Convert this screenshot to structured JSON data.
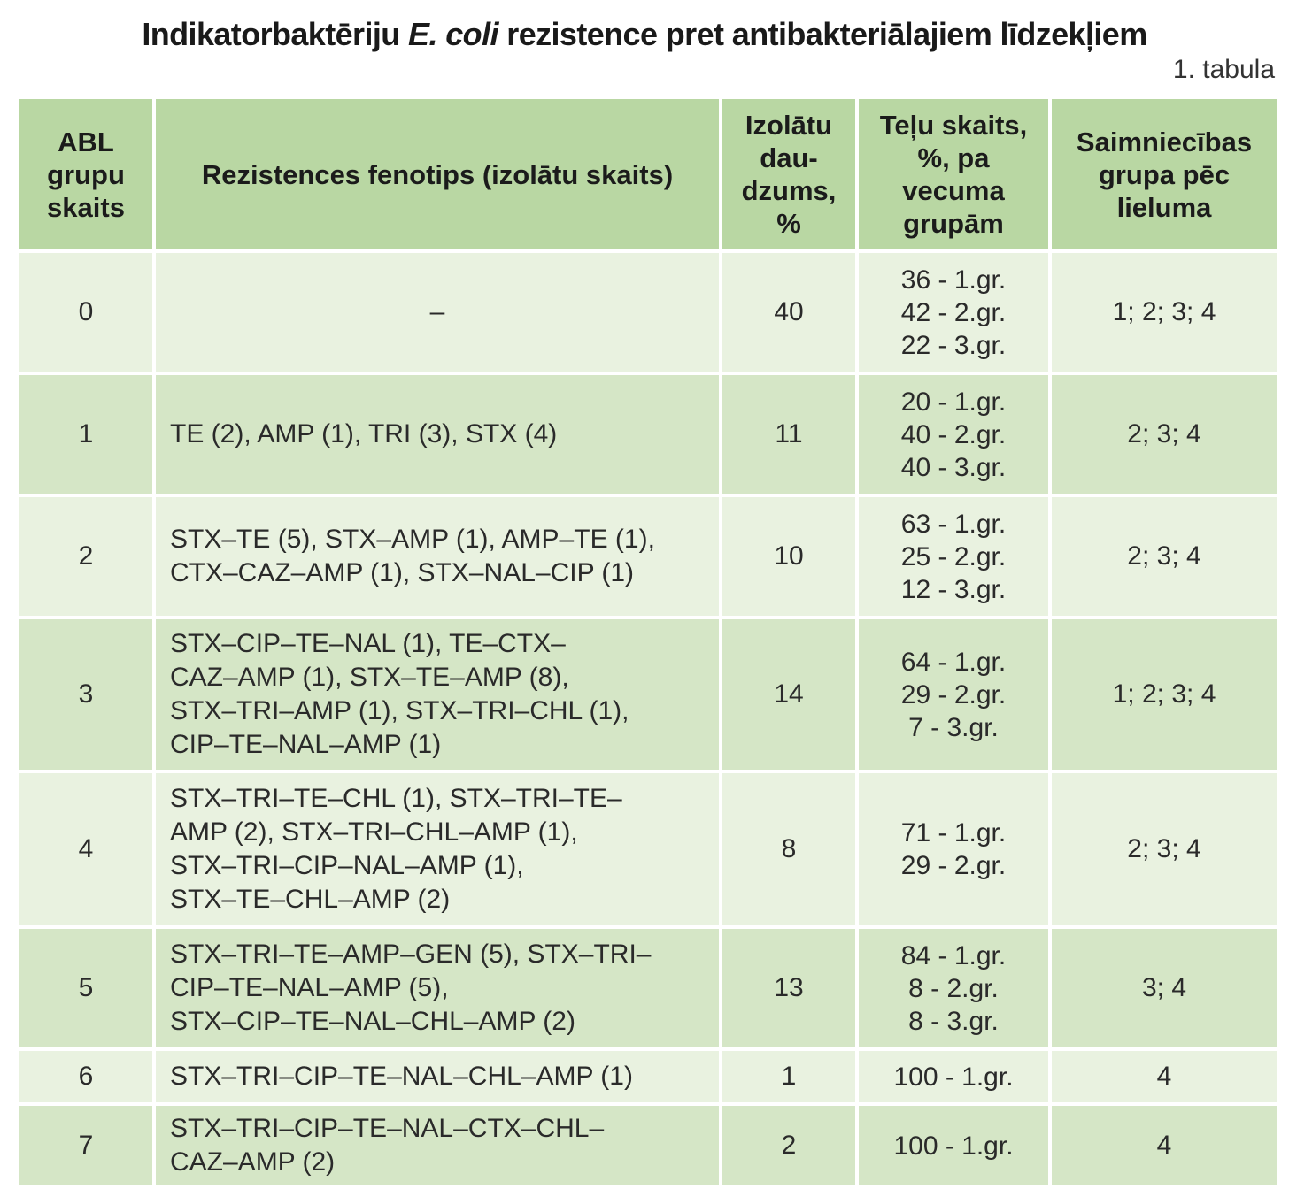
{
  "title": {
    "part1": "Indikatorbaktēriju ",
    "part2_italic": "E. coli",
    "part3": " rezistence pret antibakteriālajiem līdzekļiem"
  },
  "table_label": "1. tabula",
  "headers": {
    "col1": [
      "ABL",
      "grupu",
      "skaits"
    ],
    "col2": [
      "Rezistences fenotips (izolātu skaits)"
    ],
    "col3": [
      "Izolātu",
      "dau-",
      "dzums,",
      "%"
    ],
    "col4": [
      "Teļu skaits,",
      "%, pa",
      "vecuma",
      "grupām"
    ],
    "col5": [
      "Saimniecības",
      "grupa pēc",
      "lieluma"
    ]
  },
  "rows": [
    {
      "abl": "0",
      "phenotype": [
        "–"
      ],
      "percent": "40",
      "ages": [
        "36 - 1.gr.",
        "42 - 2.gr.",
        "22 - 3.gr."
      ],
      "farm": "1; 2; 3; 4"
    },
    {
      "abl": "1",
      "phenotype": [
        "TE (2), AMP (1), TRI (3), STX (4)"
      ],
      "percent": "11",
      "ages": [
        "20 - 1.gr.",
        "40 - 2.gr.",
        "40 - 3.gr."
      ],
      "farm": "2; 3; 4"
    },
    {
      "abl": "2",
      "phenotype": [
        "STX–TE (5), STX–AMP (1), AMP–TE (1),",
        "CTX–CAZ–AMP (1), STX–NAL–CIP (1)"
      ],
      "percent": "10",
      "ages": [
        "63 - 1.gr.",
        "25 - 2.gr.",
        "12 - 3.gr."
      ],
      "farm": "2; 3; 4"
    },
    {
      "abl": "3",
      "phenotype": [
        "STX–CIP–TE–NAL (1), TE–CTX–",
        "CAZ–AMP (1), STX–TE–AMP (8),",
        "STX–TRI–AMP (1), STX–TRI–CHL (1),",
        "CIP–TE–NAL–AMP (1)"
      ],
      "percent": "14",
      "ages": [
        "64 - 1.gr.",
        "29 - 2.gr.",
        "7 - 3.gr."
      ],
      "farm": "1; 2; 3; 4"
    },
    {
      "abl": "4",
      "phenotype": [
        "STX–TRI–TE–CHL (1), STX–TRI–TE–",
        "AMP (2), STX–TRI–CHL–AMP (1),",
        "STX–TRI–CIP–NAL–AMP (1),",
        "STX–TE–CHL–AMP (2)"
      ],
      "percent": "8",
      "ages": [
        "71 - 1.gr.",
        "29 - 2.gr."
      ],
      "farm": "2; 3; 4"
    },
    {
      "abl": "5",
      "phenotype": [
        "STX–TRI–TE–AMP–GEN (5), STX–TRI–",
        "CIP–TE–NAL–AMP (5),",
        "STX–CIP–TE–NAL–CHL–AMP (2)"
      ],
      "percent": "13",
      "ages": [
        "84 - 1.gr.",
        "8 - 2.gr.",
        "8 - 3.gr."
      ],
      "farm": "3; 4"
    },
    {
      "abl": "6",
      "phenotype": [
        "STX–TRI–CIP–TE–NAL–CHL–AMP (1)"
      ],
      "percent": "1",
      "ages": [
        "100 - 1.gr."
      ],
      "farm": "4"
    },
    {
      "abl": "7",
      "phenotype": [
        "STX–TRI–CIP–TE–NAL–CTX–CHL–",
        "CAZ–AMP (2)"
      ],
      "percent": "2",
      "ages": [
        "100 - 1.gr."
      ],
      "farm": "4"
    }
  ]
}
